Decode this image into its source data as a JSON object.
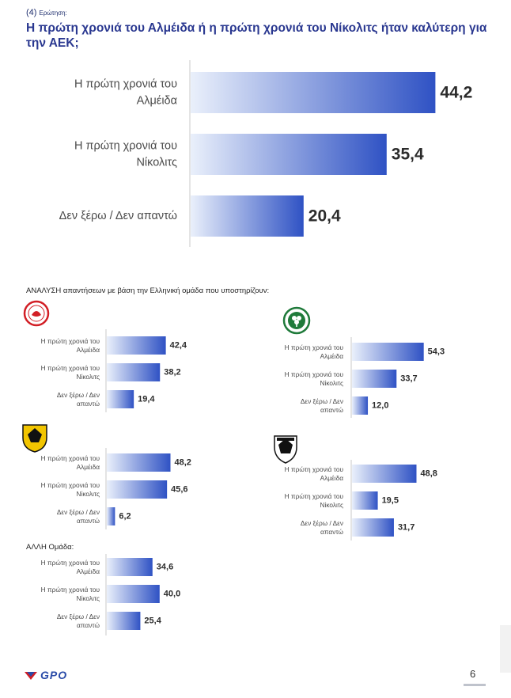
{
  "question": {
    "number": "(4)",
    "number_suffix": "Ερώτηση:",
    "title": "Η πρώτη χρονιά του Αλμέιδα ή η πρώτη χρονιά του Νίκολιτς ήταν καλύτερη για την ΑΕΚ;"
  },
  "analysis_title": "ΑΝΑΛΥΣΗ απαντήσεων με βάση την Ελληνική ομάδα που υποστηρίζουν:",
  "other_group_title": "ΑΛΛΗ Ομάδα:",
  "page_number": "6",
  "logo_text": "GPO",
  "colors": {
    "bar_dark": "#2f52c4",
    "bar_light": "#eaf0fb",
    "title": "#2a3890",
    "axis": "#c8c8c8"
  },
  "chart_data": [
    {
      "id": "total",
      "type": "bar",
      "orientation": "horizontal",
      "categories": [
        "Η πρώτη χρονιά του Αλμέιδα",
        "Η πρώτη χρονιά του Νίκολιτς",
        "Δεν ξέρω / Δεν απαντώ"
      ],
      "category_lines": [
        [
          "Η πρώτη χρονιά του",
          "Αλμέιδα"
        ],
        [
          "Η πρώτη χρονιά του",
          "Νίκολιτς"
        ],
        [
          "Δεν ξέρω / Δεν απαντώ"
        ]
      ],
      "values": [
        44.2,
        35.4,
        20.4
      ],
      "value_labels": [
        "44,2",
        "35,4",
        "20,4"
      ]
    },
    {
      "id": "olympiacos",
      "team": "Ολυμπιακός",
      "type": "bar",
      "orientation": "horizontal",
      "categories": [
        "Η πρώτη χρονιά του Αλμέιδα",
        "Η πρώτη χρονιά του Νίκολιτς",
        "Δεν ξέρω / Δεν απαντώ"
      ],
      "category_lines": [
        [
          "Η πρώτη χρονιά του",
          "Αλμέιδα"
        ],
        [
          "Η πρώτη χρονιά του",
          "Νίκολιτς"
        ],
        [
          "Δεν ξέρω / Δεν",
          "απαντώ"
        ]
      ],
      "values": [
        42.4,
        38.2,
        19.4
      ],
      "value_labels": [
        "42,4",
        "38,2",
        "19,4"
      ]
    },
    {
      "id": "panathinaikos",
      "team": "Παναθηναϊκός",
      "type": "bar",
      "orientation": "horizontal",
      "categories": [
        "Η πρώτη χρονιά του Αλμέιδα",
        "Η πρώτη χρονιά του Νίκολιτς",
        "Δεν ξέρω / Δεν απαντώ"
      ],
      "category_lines": [
        [
          "Η πρώτη χρονιά του",
          "Αλμέιδα"
        ],
        [
          "Η πρώτη χρονιά του",
          "Νίκολιτς"
        ],
        [
          "Δεν ξέρω / Δεν",
          "απαντώ"
        ]
      ],
      "values": [
        54.3,
        33.7,
        12.0
      ],
      "value_labels": [
        "54,3",
        "33,7",
        "12,0"
      ]
    },
    {
      "id": "aek",
      "team": "ΑΕΚ",
      "type": "bar",
      "orientation": "horizontal",
      "categories": [
        "Η πρώτη χρονιά του Αλμέιδα",
        "Η πρώτη χρονιά του Νίκολιτς",
        "Δεν ξέρω / Δεν απαντώ"
      ],
      "category_lines": [
        [
          "Η πρώτη χρονιά του",
          "Αλμέιδα"
        ],
        [
          "Η πρώτη χρονιά του",
          "Νίκολιτς"
        ],
        [
          "Δεν ξέρω / Δεν",
          "απαντώ"
        ]
      ],
      "values": [
        48.2,
        45.6,
        6.2
      ],
      "value_labels": [
        "48,2",
        "45,6",
        "6,2"
      ]
    },
    {
      "id": "paok",
      "team": "ΠΑΟΚ",
      "type": "bar",
      "orientation": "horizontal",
      "categories": [
        "Η πρώτη χρονιά του Αλμέιδα",
        "Η πρώτη χρονιά του Νίκολιτς",
        "Δεν ξέρω / Δεν απαντώ"
      ],
      "category_lines": [
        [
          "Η πρώτη χρονιά του",
          "Αλμέιδα"
        ],
        [
          "Η πρώτη χρονιά του",
          "Νίκολιτς"
        ],
        [
          "Δεν ξέρω / Δεν",
          "απαντώ"
        ]
      ],
      "values": [
        48.8,
        19.5,
        31.7
      ],
      "value_labels": [
        "48,8",
        "19,5",
        "31,7"
      ]
    },
    {
      "id": "other",
      "team": "ΑΛΛΗ Ομάδα",
      "type": "bar",
      "orientation": "horizontal",
      "categories": [
        "Η πρώτη χρονιά του Αλμέιδα",
        "Η πρώτη χρονιά του Νίκολιτς",
        "Δεν ξέρω / Δεν απαντώ"
      ],
      "category_lines": [
        [
          "Η πρώτη χρονιά του",
          "Αλμέιδα"
        ],
        [
          "Η πρώτη χρονιά του",
          "Νίκολιτς"
        ],
        [
          "Δεν ξέρω / Δεν",
          "απαντώ"
        ]
      ],
      "values": [
        34.6,
        40.0,
        25.4
      ],
      "value_labels": [
        "34,6",
        "40,0",
        "25,4"
      ]
    }
  ]
}
